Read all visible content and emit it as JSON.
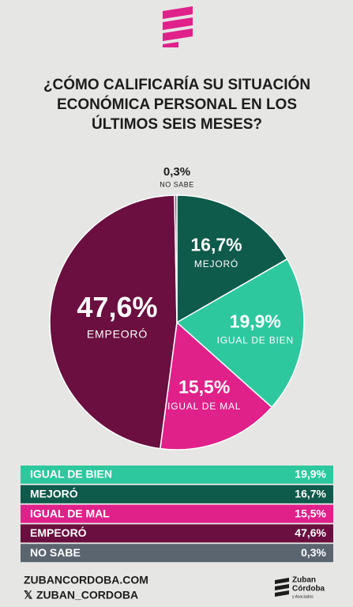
{
  "chart_data": {
    "type": "pie",
    "title": [
      "¿CÓMO CALIFICARÍA SU SITUACIÓN",
      "ECONÓMICA PERSONAL EN LOS",
      "ÚLTIMOS SEIS MESES?"
    ],
    "categories": [
      "MEJORÓ",
      "IGUAL DE BIEN",
      "IGUAL DE MAL",
      "EMPEORÓ",
      "NO SABE"
    ],
    "values": [
      16.7,
      19.9,
      15.5,
      47.6,
      0.3
    ],
    "value_labels": [
      "16,7%",
      "19,9%",
      "15,5%",
      "47,6%",
      "0,3%"
    ],
    "colors": [
      "#0e5a4b",
      "#2ec89f",
      "#e0218a",
      "#6a0f3f",
      "#5b6570"
    ]
  },
  "table": {
    "rows": [
      [
        "IGUAL DE BIEN",
        "19,9%"
      ],
      [
        "MEJORÓ",
        "16,7%"
      ],
      [
        "IGUAL DE MAL",
        "15,5%"
      ],
      [
        "EMPEORÓ",
        "47,6%"
      ],
      [
        "NO SABE",
        "0,3%"
      ]
    ],
    "colors": [
      "#2ec89f",
      "#0e5a4b",
      "#e0218a",
      "#6a0f3f",
      "#5b6570"
    ]
  },
  "footer": {
    "website": "ZUBANCORDOBA.COM",
    "handle": "ZUBAN_CORDOBA"
  },
  "brand": {
    "line1": "Zuban",
    "line2": "Córdoba",
    "line3": "y Asociados"
  }
}
